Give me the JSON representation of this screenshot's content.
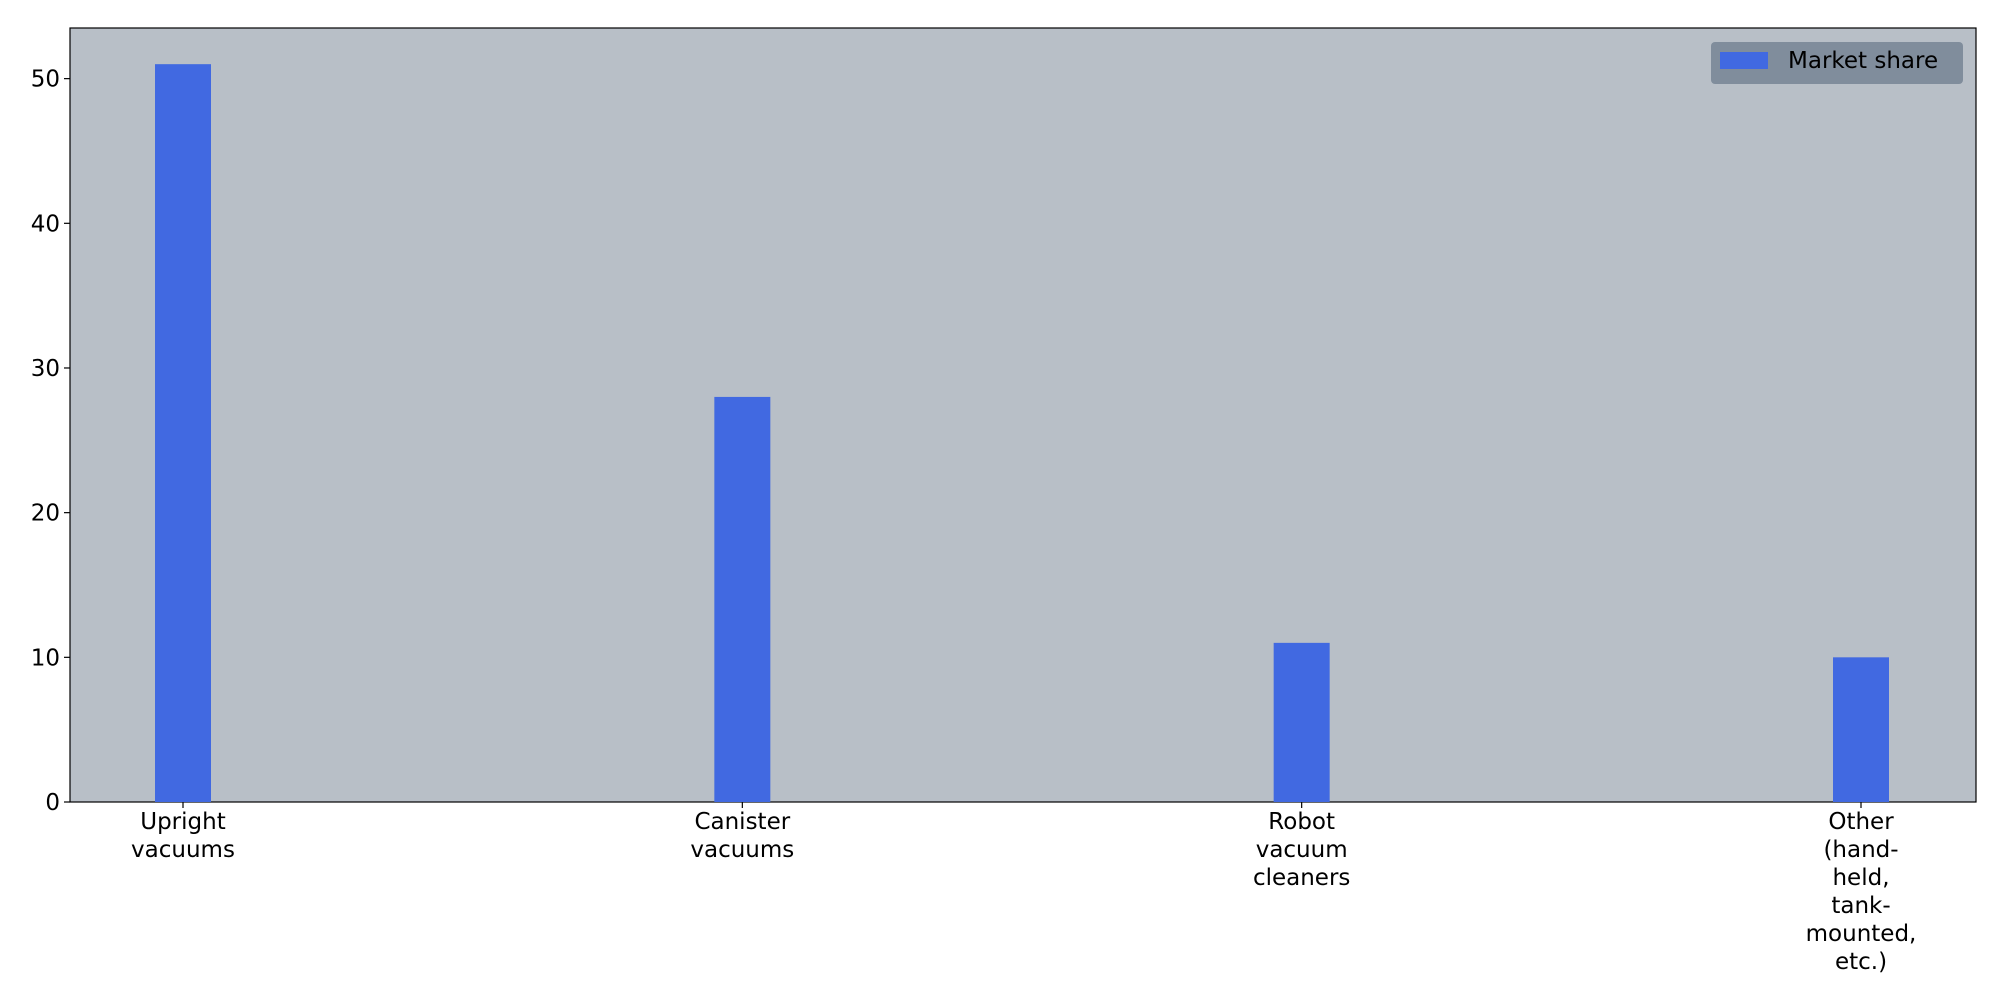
{
  "chart_data": {
    "type": "bar",
    "categories": [
      "Upright vacuums",
      "Canister vacuums",
      "Robot vacuum cleaners",
      "Other (hand-held, tank-mounted, etc.)"
    ],
    "category_lines": [
      [
        "Upright",
        "vacuums"
      ],
      [
        "Canister",
        "vacuums"
      ],
      [
        "Robot",
        "vacuum",
        "cleaners"
      ],
      [
        "Other",
        "(hand-",
        "held,",
        "tank-",
        "mounted,",
        "etc.)"
      ]
    ],
    "series": [
      {
        "name": "Market share",
        "values": [
          51,
          28,
          11,
          10
        ],
        "color": "#4169e1"
      }
    ],
    "title": "",
    "xlabel": "",
    "ylabel": "",
    "ylim": [
      0,
      53.5
    ],
    "yticks": [
      0,
      10,
      20,
      30,
      40,
      50
    ],
    "grid": false,
    "legend": "top-right",
    "plot_background": "#b8bfc7",
    "legend_background": "#808d9c"
  }
}
